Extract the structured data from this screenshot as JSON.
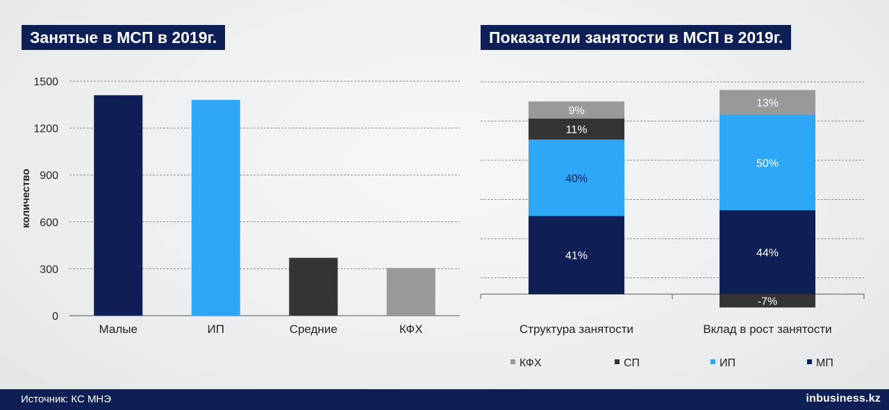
{
  "left_panel": {
    "title": "Занятые в МСП в 2019г."
  },
  "right_panel": {
    "title": "Показатели занятости в МСП в 2019г."
  },
  "footer": {
    "source": "Источник: КС МНЭ",
    "logo": "inbusiness.kz"
  },
  "colors": {
    "navy": "#0e1f55",
    "light_blue": "#2ea7f6",
    "dark_gray": "#343434",
    "gray": "#999999",
    "header_bg": "#0e1f55"
  },
  "chart_data": [
    {
      "type": "bar",
      "title": "Занятые в МСП в 2019г.",
      "xlabel": "",
      "ylabel": "количество",
      "ylim": [
        0,
        1500
      ],
      "yticks": [
        0,
        300,
        600,
        900,
        1200,
        1500
      ],
      "categories": [
        "Малые",
        "ИП",
        "Средние",
        "КФХ"
      ],
      "values": [
        1410,
        1380,
        370,
        305
      ],
      "bar_colors": [
        "#0e1f55",
        "#2ea7f6",
        "#343434",
        "#999999"
      ],
      "grid": true
    },
    {
      "type": "bar",
      "stacked": true,
      "title": "Показатели занятости в МСП в 2019г.",
      "categories": [
        "Структура занятости",
        "Вклад в рост занятости"
      ],
      "series": [
        {
          "name": "МП",
          "color": "#0e1f55",
          "values": [
            41,
            44
          ],
          "labels": [
            "41%",
            "44%"
          ],
          "label_color": "#ffffff"
        },
        {
          "name": "ИП",
          "color": "#2ea7f6",
          "values": [
            40,
            50
          ],
          "labels": [
            "40%",
            "50%"
          ],
          "label_colors": [
            "#0e1f55",
            "#ffffff"
          ]
        },
        {
          "name": "СП",
          "color": "#343434",
          "values": [
            11,
            -7
          ],
          "labels": [
            "11%",
            "-7%"
          ],
          "label_color": "#ffffff"
        },
        {
          "name": "КФХ",
          "color": "#999999",
          "values": [
            9,
            13
          ],
          "labels": [
            "9%",
            "13%"
          ],
          "label_color": "#ffffff"
        }
      ],
      "legend": {
        "position": "bottom",
        "order": [
          "КФХ",
          "СП",
          "ИП",
          "МП"
        ]
      },
      "ylim": [
        -10,
        110
      ],
      "grid": true
    }
  ]
}
